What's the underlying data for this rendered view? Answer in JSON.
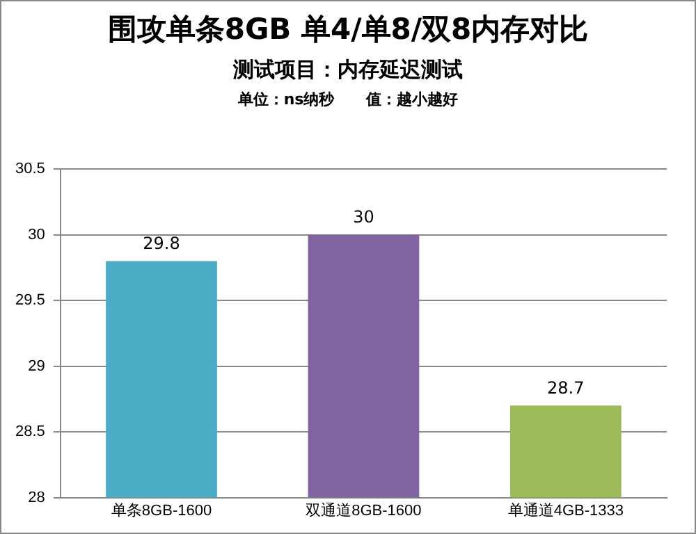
{
  "chart_data": {
    "type": "bar",
    "title": "围攻单条8GB 单4/单8/双8内存对比",
    "subtitle": "测试项目：内存延迟测试",
    "annotations": [
      "单位：ns纳秒      值：越小越好"
    ],
    "categories": [
      "单条8GB-1600",
      "双通道8GB-1600",
      "单通道4GB-1333"
    ],
    "values": [
      29.8,
      30,
      28.7
    ],
    "colors": [
      "#4bacc6",
      "#8064a2",
      "#9bbb59"
    ],
    "ylim": [
      28,
      30.5
    ],
    "yticks": [
      28,
      28.5,
      29,
      29.5,
      30,
      30.5
    ],
    "grid": "y",
    "data_labels": true,
    "legend": false
  }
}
